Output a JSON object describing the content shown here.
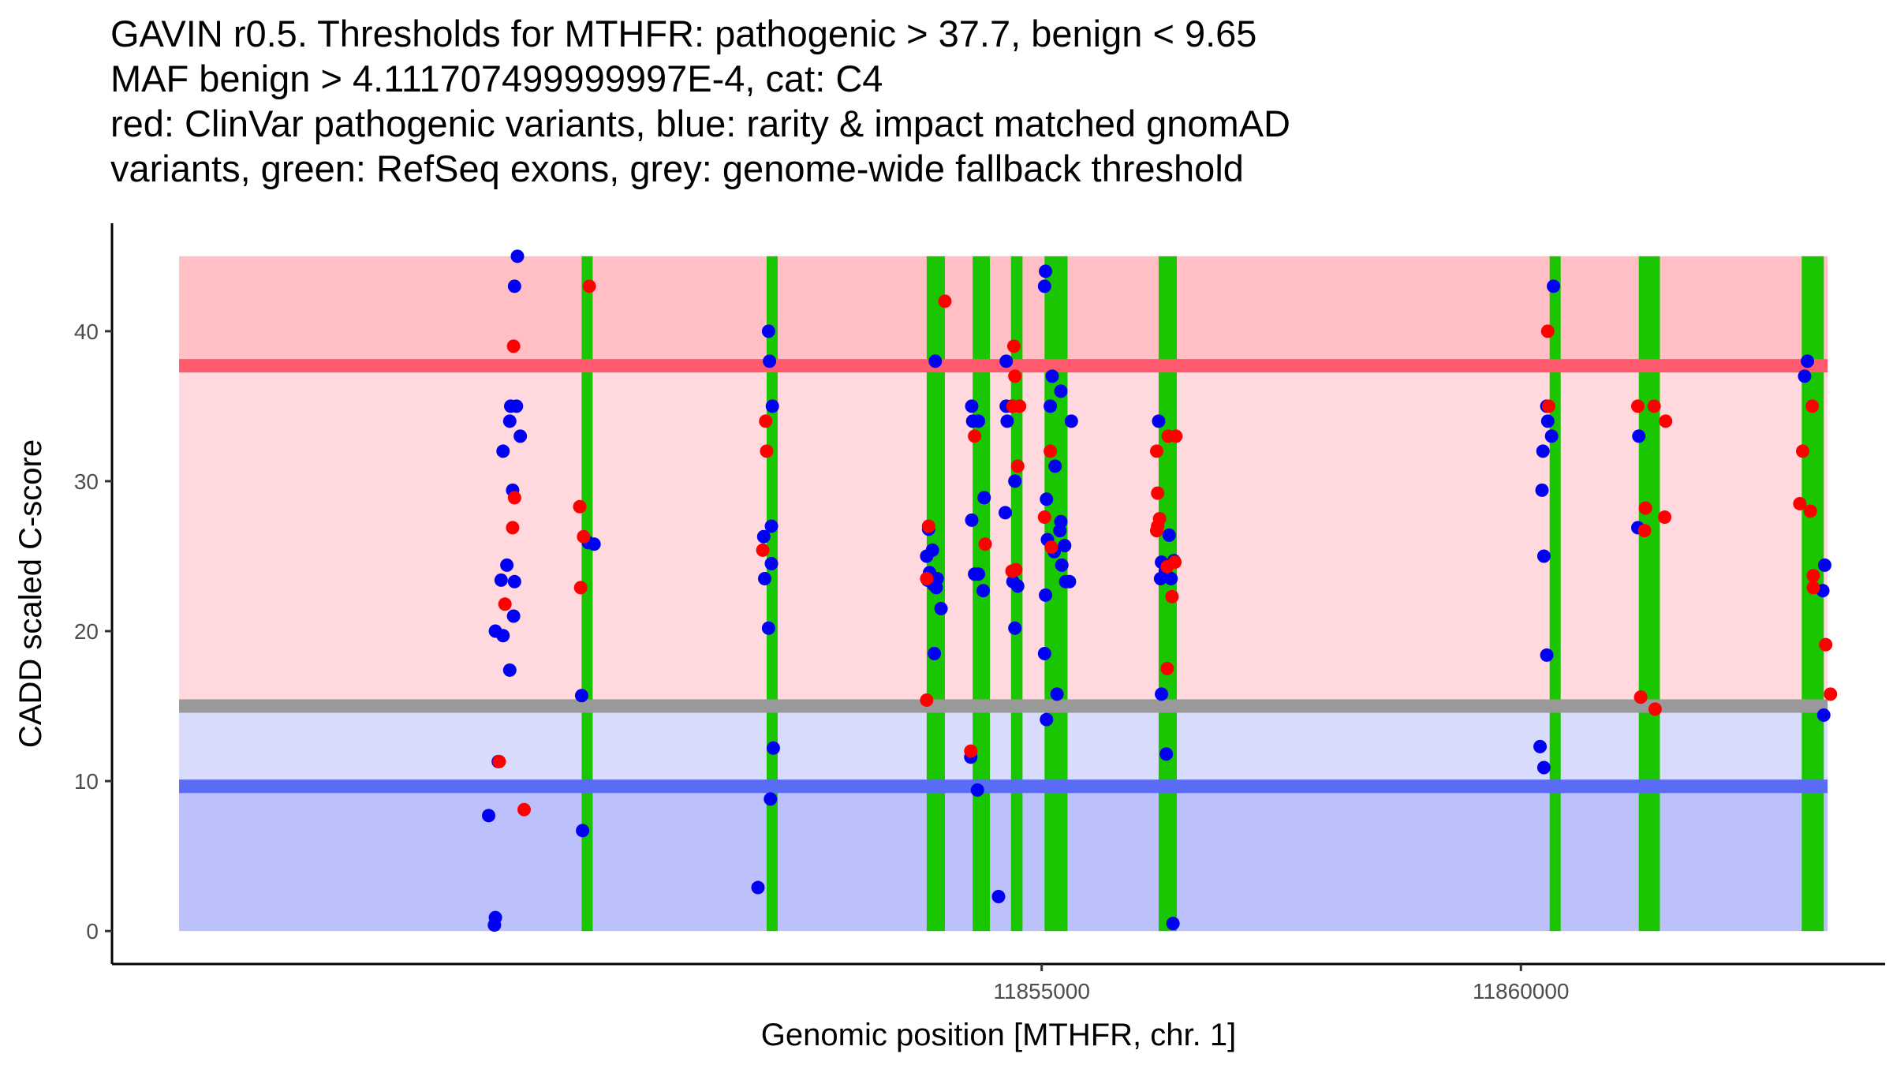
{
  "chart_data": {
    "type": "scatter",
    "title_lines": [
      "GAVIN r0.5. Thresholds for MTHFR: pathogenic > 37.7, benign < 9.65",
      "MAF benign > 4.111707499999997E-4, cat: C4",
      "red: ClinVar pathogenic variants, blue: rarity & impact matched gnomAD",
      "variants, green: RefSeq exons, grey: genome-wide fallback threshold"
    ],
    "xlabel": "Genomic position [MTHFR, chr. 1]",
    "ylabel": "CADD scaled C-score",
    "xlim": [
      11845300,
      11863800
    ],
    "ylim": [
      -2.2,
      47.2
    ],
    "x_ticks": [
      11855000,
      11860000
    ],
    "x_tick_labels": [
      "11855000",
      "11860000"
    ],
    "y_ticks": [
      0,
      10,
      20,
      30,
      40
    ],
    "y_tick_labels": [
      "0",
      "10",
      "20",
      "30",
      "40"
    ],
    "x_range": [
      11846000,
      11863200
    ],
    "thresholds": {
      "pathogenic": 37.7,
      "benign": 9.65,
      "fallback": 15.0,
      "max": 45
    },
    "regions": [
      {
        "name": "pathogenic region",
        "from": 37.7,
        "to": 45,
        "color": "#ffbfc5"
      },
      {
        "name": "uncertain high region",
        "from": 15.0,
        "to": 37.7,
        "color": "#ffd9de"
      },
      {
        "name": "uncertain low region",
        "from": 9.65,
        "to": 15.0,
        "color": "#d9dbfd"
      },
      {
        "name": "benign region",
        "from": 0,
        "to": 9.65,
        "color": "#bcc0fb"
      }
    ],
    "threshold_lines": [
      {
        "name": "pathogenic threshold",
        "y": 37.7,
        "color": "#ff5a6e"
      },
      {
        "name": "fallback threshold",
        "y": 15.0,
        "color": "#999999"
      },
      {
        "name": "benign threshold",
        "y": 9.65,
        "color": "#5a6bf5"
      }
    ],
    "exon_color": "#19c600",
    "exons": [
      {
        "start": 11850200,
        "end": 11850310
      },
      {
        "start": 11852130,
        "end": 11852240
      },
      {
        "start": 11853800,
        "end": 11853990
      },
      {
        "start": 11854280,
        "end": 11854460
      },
      {
        "start": 11854680,
        "end": 11854800
      },
      {
        "start": 11855030,
        "end": 11855270
      },
      {
        "start": 11856220,
        "end": 11856410
      },
      {
        "start": 11860300,
        "end": 11860400
      },
      {
        "start": 11861230,
        "end": 11861450
      },
      {
        "start": 11862930,
        "end": 11863160
      }
    ],
    "series": [
      {
        "name": "gnomAD",
        "color": "#0000f5",
        "points": [
          [
            11849530,
            45
          ],
          [
            11849500,
            43
          ],
          [
            11849460,
            35
          ],
          [
            11849520,
            35
          ],
          [
            11849560,
            33
          ],
          [
            11849450,
            34
          ],
          [
            11849380,
            32
          ],
          [
            11849480,
            29.4
          ],
          [
            11849420,
            24.4
          ],
          [
            11849360,
            23.4
          ],
          [
            11849500,
            23.3
          ],
          [
            11849490,
            21
          ],
          [
            11849300,
            20
          ],
          [
            11849380,
            19.7
          ],
          [
            11849450,
            17.4
          ],
          [
            11849330,
            11.3
          ],
          [
            11849230,
            7.7
          ],
          [
            11849300,
            0.9
          ],
          [
            11849290,
            0.4
          ],
          [
            11850200,
            15.7
          ],
          [
            11850210,
            6.7
          ],
          [
            11850270,
            25.9
          ],
          [
            11850330,
            25.8
          ],
          [
            11852150,
            40
          ],
          [
            11852160,
            38
          ],
          [
            11852190,
            35
          ],
          [
            11852180,
            27
          ],
          [
            11852180,
            24.5
          ],
          [
            11852100,
            26.3
          ],
          [
            11852110,
            23.5
          ],
          [
            11852150,
            20.2
          ],
          [
            11852200,
            12.2
          ],
          [
            11852170,
            8.8
          ],
          [
            11852040,
            2.9
          ],
          [
            11853890,
            38
          ],
          [
            11853820,
            26.8
          ],
          [
            11853800,
            25
          ],
          [
            11853860,
            25.4
          ],
          [
            11853830,
            23.9
          ],
          [
            11853810,
            23.4
          ],
          [
            11853870,
            23.1
          ],
          [
            11853910,
            23.5
          ],
          [
            11853900,
            22.9
          ],
          [
            11853950,
            21.5
          ],
          [
            11853880,
            18.5
          ],
          [
            11854270,
            35
          ],
          [
            11854280,
            34
          ],
          [
            11854340,
            34
          ],
          [
            11854270,
            27.4
          ],
          [
            11854300,
            23.8
          ],
          [
            11854340,
            23.8
          ],
          [
            11854390,
            22.7
          ],
          [
            11854400,
            28.9
          ],
          [
            11854260,
            11.6
          ],
          [
            11854330,
            9.4
          ],
          [
            11854630,
            38
          ],
          [
            11854640,
            34
          ],
          [
            11854630,
            35
          ],
          [
            11854690,
            35
          ],
          [
            11854720,
            30
          ],
          [
            11854620,
            27.9
          ],
          [
            11854700,
            23.3
          ],
          [
            11854750,
            23
          ],
          [
            11854720,
            20.2
          ],
          [
            11854550,
            2.3
          ],
          [
            11855040,
            44
          ],
          [
            11855030,
            43
          ],
          [
            11855110,
            37
          ],
          [
            11855200,
            36
          ],
          [
            11855090,
            35
          ],
          [
            11855310,
            34
          ],
          [
            11855140,
            31
          ],
          [
            11855050,
            28.8
          ],
          [
            11855200,
            27.3
          ],
          [
            11855190,
            26.7
          ],
          [
            11855060,
            26.1
          ],
          [
            11855130,
            25.3
          ],
          [
            11855240,
            25.7
          ],
          [
            11855210,
            24.4
          ],
          [
            11855250,
            23.3
          ],
          [
            11855290,
            23.3
          ],
          [
            11855040,
            22.4
          ],
          [
            11855030,
            18.5
          ],
          [
            11855160,
            15.8
          ],
          [
            11855050,
            14.1
          ],
          [
            11856220,
            34
          ],
          [
            11856330,
            26.4
          ],
          [
            11856250,
            24.6
          ],
          [
            11856240,
            23.5
          ],
          [
            11856290,
            24
          ],
          [
            11856350,
            23.5
          ],
          [
            11856380,
            24.7
          ],
          [
            11856250,
            15.8
          ],
          [
            11856300,
            11.8
          ],
          [
            11856370,
            0.5
          ],
          [
            11860340,
            43
          ],
          [
            11860270,
            35
          ],
          [
            11860280,
            34
          ],
          [
            11860320,
            33
          ],
          [
            11860230,
            32
          ],
          [
            11860220,
            29.4
          ],
          [
            11860240,
            25
          ],
          [
            11860270,
            18.4
          ],
          [
            11860200,
            12.3
          ],
          [
            11860240,
            10.9
          ],
          [
            11861230,
            33
          ],
          [
            11861220,
            26.9
          ],
          [
            11862990,
            38
          ],
          [
            11862960,
            37
          ],
          [
            11863170,
            24.4
          ],
          [
            11863150,
            22.7
          ],
          [
            11863160,
            14.4
          ]
        ]
      },
      {
        "name": "ClinVar pathogenic",
        "color": "#ff0000",
        "points": [
          [
            11849490,
            39
          ],
          [
            11849500,
            28.9
          ],
          [
            11849480,
            26.9
          ],
          [
            11849400,
            21.8
          ],
          [
            11849340,
            11.3
          ],
          [
            11849600,
            8.1
          ],
          [
            11850280,
            43
          ],
          [
            11850180,
            28.3
          ],
          [
            11850220,
            26.3
          ],
          [
            11850190,
            22.9
          ],
          [
            11852120,
            34
          ],
          [
            11852130,
            32
          ],
          [
            11852090,
            25.4
          ],
          [
            11853990,
            42
          ],
          [
            11853820,
            27
          ],
          [
            11853800,
            23.5
          ],
          [
            11853800,
            15.4
          ],
          [
            11854300,
            33
          ],
          [
            11854410,
            25.8
          ],
          [
            11854260,
            12
          ],
          [
            11854710,
            39
          ],
          [
            11854720,
            37
          ],
          [
            11854700,
            35
          ],
          [
            11854770,
            35
          ],
          [
            11854750,
            31
          ],
          [
            11854690,
            24
          ],
          [
            11854730,
            24.1
          ],
          [
            11855090,
            32
          ],
          [
            11855030,
            27.6
          ],
          [
            11855100,
            25.6
          ],
          [
            11856320,
            33
          ],
          [
            11856400,
            33
          ],
          [
            11856200,
            32
          ],
          [
            11856210,
            29.2
          ],
          [
            11856230,
            27.5
          ],
          [
            11856210,
            27
          ],
          [
            11856200,
            26.7
          ],
          [
            11856310,
            24.3
          ],
          [
            11856390,
            24.6
          ],
          [
            11856360,
            22.3
          ],
          [
            11856310,
            17.5
          ],
          [
            11860280,
            40
          ],
          [
            11860290,
            35
          ],
          [
            11861220,
            35
          ],
          [
            11861390,
            35
          ],
          [
            11861510,
            34
          ],
          [
            11861300,
            28.2
          ],
          [
            11861500,
            27.6
          ],
          [
            11861290,
            26.7
          ],
          [
            11861250,
            15.6
          ],
          [
            11861400,
            14.8
          ],
          [
            11863040,
            35
          ],
          [
            11862940,
            32
          ],
          [
            11862910,
            28.5
          ],
          [
            11863020,
            28
          ],
          [
            11863050,
            23.7
          ],
          [
            11863050,
            22.9
          ],
          [
            11863180,
            19.1
          ],
          [
            11863230,
            15.8
          ]
        ]
      }
    ]
  }
}
